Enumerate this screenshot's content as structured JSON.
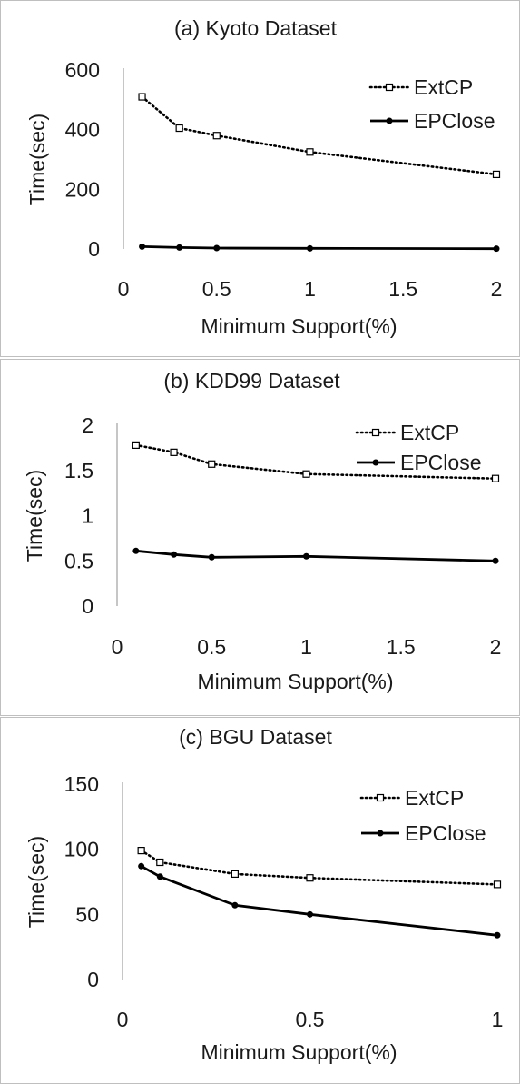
{
  "chart_data": [
    {
      "type": "line",
      "title": "(a) Kyoto Dataset",
      "xlabel": "Minimum Support(%)",
      "ylabel": "Time(sec)",
      "xlim": [
        0,
        2
      ],
      "ylim": [
        0,
        600
      ],
      "xticks": [
        "0",
        "0.5",
        "1",
        "1.5",
        "2"
      ],
      "yticks": [
        "0",
        "200",
        "400",
        "600"
      ],
      "grid": false,
      "legend": "top-right",
      "series": [
        {
          "name": "ExtCP",
          "style": "dotted",
          "marker": "square",
          "color": "#000000",
          "x": [
            0.1,
            0.3,
            0.5,
            1,
            2
          ],
          "y": [
            510,
            405,
            380,
            325,
            250
          ]
        },
        {
          "name": "EPClose",
          "style": "solid",
          "marker": "circle",
          "color": "#000000",
          "x": [
            0.1,
            0.3,
            0.5,
            1,
            2
          ],
          "y": [
            8,
            5,
            3,
            2,
            1
          ]
        }
      ]
    },
    {
      "type": "line",
      "title": "(b) KDD99 Dataset",
      "xlabel": "Minimum Support(%)",
      "ylabel": "Time(sec)",
      "xlim": [
        0,
        2
      ],
      "ylim": [
        0,
        2
      ],
      "xticks": [
        "0",
        "0.5",
        "1",
        "1.5",
        "2"
      ],
      "yticks": [
        "0",
        "0.5",
        "1",
        "1.5",
        "2"
      ],
      "grid": false,
      "legend": "top-right",
      "series": [
        {
          "name": "ExtCP",
          "style": "dotted",
          "marker": "square",
          "color": "#000000",
          "x": [
            0.1,
            0.3,
            0.5,
            1,
            2
          ],
          "y": [
            1.78,
            1.7,
            1.57,
            1.46,
            1.41
          ]
        },
        {
          "name": "EPClose",
          "style": "solid",
          "marker": "circle",
          "color": "#000000",
          "x": [
            0.1,
            0.3,
            0.5,
            1,
            2
          ],
          "y": [
            0.61,
            0.57,
            0.54,
            0.55,
            0.5
          ]
        }
      ]
    },
    {
      "type": "line",
      "title": "(c) BGU Dataset",
      "xlabel": "Minimum Support(%)",
      "ylabel": "Time(sec)",
      "xlim": [
        0,
        1
      ],
      "ylim": [
        0,
        150
      ],
      "xticks": [
        "0",
        "0.5",
        "1"
      ],
      "yticks": [
        "0",
        "50",
        "100",
        "150"
      ],
      "grid": false,
      "legend": "top-right",
      "series": [
        {
          "name": "ExtCP",
          "style": "dotted",
          "marker": "square",
          "color": "#000000",
          "x": [
            0.05,
            0.1,
            0.3,
            0.5,
            1
          ],
          "y": [
            99,
            90,
            81,
            78,
            73
          ]
        },
        {
          "name": "EPClose",
          "style": "solid",
          "marker": "circle",
          "color": "#000000",
          "x": [
            0.05,
            0.1,
            0.3,
            0.5,
            1
          ],
          "y": [
            87,
            79,
            57,
            50,
            34
          ]
        }
      ]
    }
  ]
}
